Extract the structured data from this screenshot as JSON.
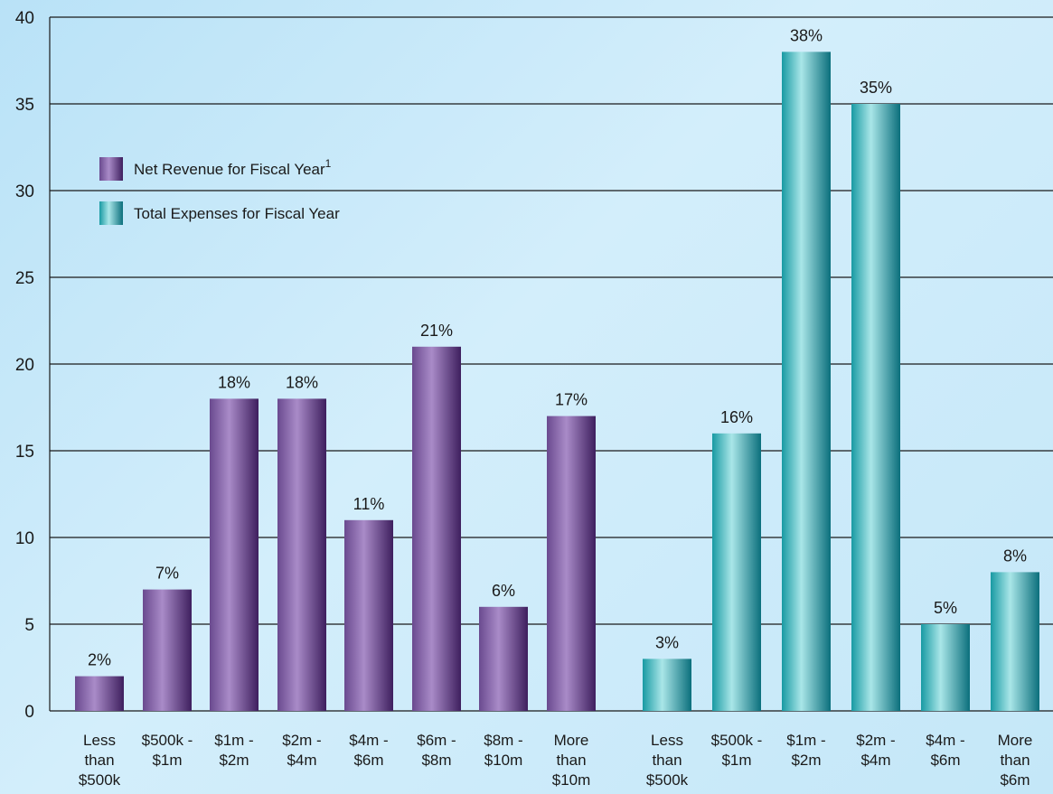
{
  "chart_data": {
    "type": "bar",
    "ylim": [
      0,
      40
    ],
    "yticks": [
      0,
      5,
      10,
      15,
      20,
      25,
      30,
      35,
      40
    ],
    "grid": true,
    "legend_position": "top-left",
    "colors": {
      "net_revenue": "#6e4891",
      "total_expenses": "#1fb0b4"
    },
    "series": [
      {
        "name": "Net Revenue for Fiscal Year",
        "superscript": "1",
        "categories": [
          [
            "Less",
            "than",
            "$500k"
          ],
          [
            "$500k -",
            "$1m"
          ],
          [
            "$1m -",
            "$2m"
          ],
          [
            "$2m -",
            "$4m"
          ],
          [
            "$4m -",
            "$6m"
          ],
          [
            "$6m -",
            "$8m"
          ],
          [
            "$8m -",
            "$10m"
          ],
          [
            "More",
            "than",
            "$10m"
          ]
        ],
        "values": [
          2,
          7,
          18,
          18,
          11,
          21,
          6,
          17
        ],
        "labels": [
          "2%",
          "7%",
          "18%",
          "18%",
          "11%",
          "21%",
          "6%",
          "17%"
        ]
      },
      {
        "name": "Total Expenses for Fiscal Year",
        "categories": [
          [
            "Less",
            "than",
            "$500k"
          ],
          [
            "$500k -",
            "$1m"
          ],
          [
            "$1m -",
            "$2m"
          ],
          [
            "$2m -",
            "$4m"
          ],
          [
            "$4m -",
            "$6m"
          ],
          [
            "More",
            "than",
            "$6m"
          ]
        ],
        "values": [
          3,
          16,
          38,
          35,
          5,
          8
        ],
        "labels": [
          "3%",
          "16%",
          "38%",
          "35%",
          "5%",
          "8%"
        ]
      }
    ]
  }
}
